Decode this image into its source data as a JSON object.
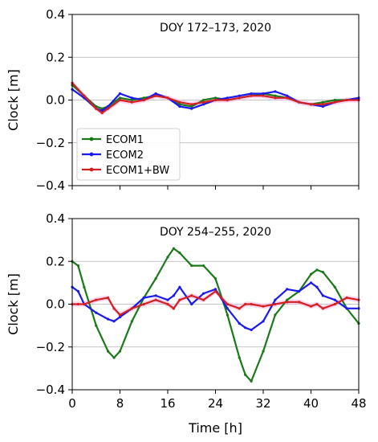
{
  "chart_data": [
    {
      "type": "line",
      "title": "DOY 172–173, 2020",
      "xlabel": "",
      "ylabel": "Clock [m]",
      "xlim": [
        0,
        48
      ],
      "ylim": [
        -0.4,
        0.4
      ],
      "xticks": [
        0,
        8,
        16,
        24,
        32,
        40,
        48
      ],
      "yticks": [
        -0.4,
        -0.2,
        0.0,
        0.2,
        0.4
      ],
      "ytick_labels": [
        "−0.4",
        "−0.2",
        "0.0",
        "0.2",
        "0.4"
      ],
      "show_xtick_labels": false,
      "grid": "horizontal",
      "legend": {
        "placement": "lower-left",
        "entries": [
          "ECOM1",
          "ECOM2",
          "ECOM1+BW"
        ]
      },
      "x": [
        0,
        2,
        4,
        5,
        6,
        8,
        10,
        12,
        14,
        16,
        18,
        20,
        22,
        24,
        26,
        28,
        30,
        32,
        34,
        36,
        38,
        40,
        42,
        44,
        46,
        48
      ],
      "series": [
        {
          "name": "ECOM1",
          "color": "#1a7a1a",
          "values": [
            0.07,
            0.02,
            -0.03,
            -0.04,
            -0.03,
            0.01,
            0.0,
            0.01,
            0.02,
            0.01,
            -0.02,
            -0.03,
            0.0,
            0.01,
            0.0,
            0.01,
            0.02,
            0.03,
            0.02,
            0.01,
            -0.01,
            -0.02,
            -0.01,
            0.0,
            0.0,
            0.01
          ]
        },
        {
          "name": "ECOM2",
          "color": "#1a1aee",
          "values": [
            0.05,
            0.01,
            -0.04,
            -0.05,
            -0.03,
            0.03,
            0.01,
            0.0,
            0.03,
            0.01,
            -0.03,
            -0.04,
            -0.02,
            0.0,
            0.01,
            0.02,
            0.03,
            0.03,
            0.04,
            0.02,
            -0.01,
            -0.02,
            -0.03,
            -0.01,
            0.0,
            0.01
          ]
        },
        {
          "name": "ECOM1+BW",
          "color": "#d42020",
          "values": [
            0.08,
            0.02,
            -0.04,
            -0.06,
            -0.04,
            0.0,
            -0.01,
            0.0,
            0.02,
            0.01,
            -0.01,
            -0.02,
            -0.01,
            0.0,
            0.0,
            0.01,
            0.02,
            0.02,
            0.01,
            0.01,
            -0.01,
            -0.02,
            -0.02,
            -0.01,
            0.0,
            0.0
          ]
        }
      ]
    },
    {
      "type": "line",
      "title": "DOY 254–255, 2020",
      "xlabel": "Time [h]",
      "ylabel": "Clock [m]",
      "xlim": [
        0,
        48
      ],
      "ylim": [
        -0.4,
        0.4
      ],
      "xticks": [
        0,
        8,
        16,
        24,
        32,
        40,
        48
      ],
      "yticks": [
        -0.4,
        -0.2,
        0.0,
        0.2,
        0.4
      ],
      "ytick_labels": [
        "−0.4",
        "−0.2",
        "0.0",
        "0.2",
        "0.4"
      ],
      "show_xtick_labels": true,
      "grid": "horizontal",
      "x": [
        0,
        1,
        2,
        4,
        6,
        7,
        8,
        10,
        12,
        14,
        16,
        17,
        18,
        20,
        22,
        24,
        26,
        28,
        29,
        30,
        32,
        34,
        36,
        38,
        40,
        41,
        42,
        44,
        46,
        48
      ],
      "series": [
        {
          "name": "ECOM1",
          "color": "#1a7a1a",
          "values": [
            0.2,
            0.18,
            0.08,
            -0.1,
            -0.22,
            -0.25,
            -0.22,
            -0.08,
            0.03,
            0.12,
            0.22,
            0.26,
            0.24,
            0.18,
            0.18,
            0.12,
            -0.05,
            -0.25,
            -0.33,
            -0.36,
            -0.22,
            -0.05,
            0.02,
            0.06,
            0.14,
            0.16,
            0.15,
            0.08,
            -0.02,
            -0.09
          ]
        },
        {
          "name": "ECOM2",
          "color": "#1a1aee",
          "values": [
            0.08,
            0.06,
            0.0,
            -0.04,
            -0.07,
            -0.08,
            -0.06,
            -0.02,
            0.03,
            0.04,
            0.02,
            0.04,
            0.08,
            0.0,
            0.05,
            0.07,
            -0.02,
            -0.09,
            -0.11,
            -0.12,
            -0.08,
            0.02,
            0.07,
            0.06,
            0.1,
            0.08,
            0.04,
            0.02,
            -0.02,
            -0.02
          ]
        },
        {
          "name": "ECOM1+BW",
          "color": "#d42020",
          "values": [
            0.0,
            0.0,
            0.0,
            0.02,
            0.03,
            -0.02,
            -0.05,
            -0.02,
            0.0,
            0.02,
            0.0,
            -0.02,
            0.02,
            0.04,
            0.02,
            0.06,
            0.0,
            -0.02,
            0.0,
            0.0,
            -0.01,
            0.0,
            0.01,
            0.01,
            -0.01,
            0.0,
            -0.02,
            0.0,
            0.03,
            0.02
          ]
        }
      ]
    }
  ]
}
